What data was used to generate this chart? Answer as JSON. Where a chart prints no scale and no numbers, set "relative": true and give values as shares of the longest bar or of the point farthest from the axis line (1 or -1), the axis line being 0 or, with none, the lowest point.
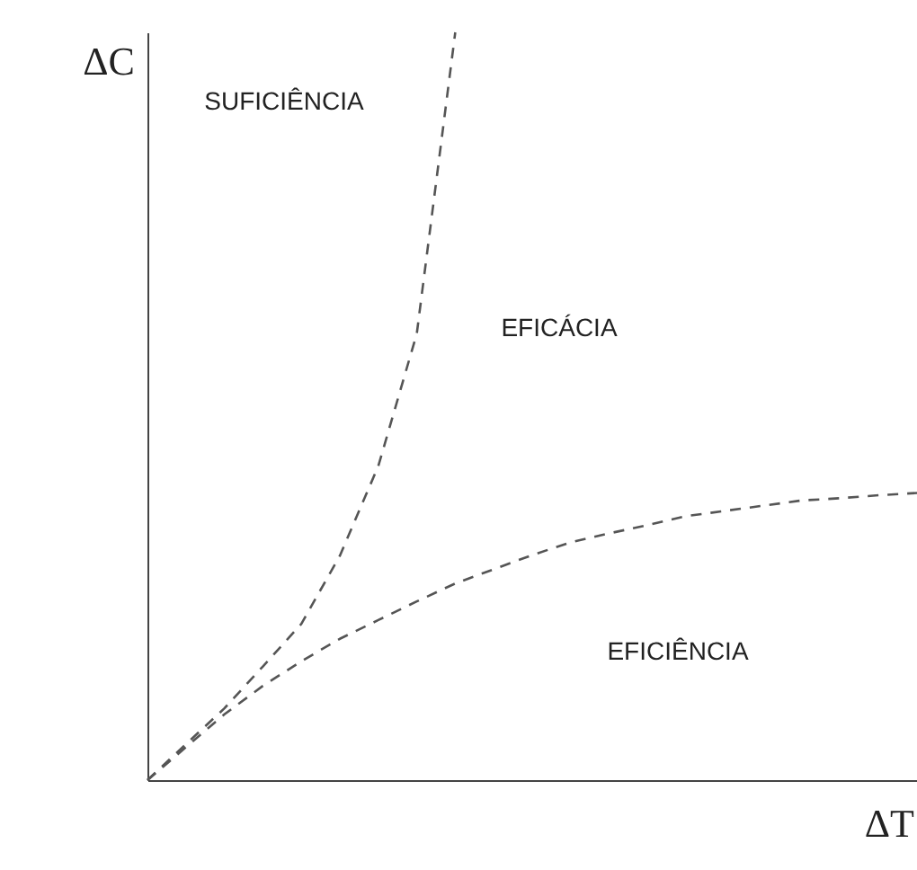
{
  "chart_data": {
    "type": "line",
    "relative": true,
    "xlabel": "ΔT",
    "ylabel": "ΔC",
    "grid": false,
    "line_style": "dashed",
    "marker": "none",
    "annotations": [
      "SUFICIÊNCIA",
      "EFICÁCIA",
      "EFICIÊNCIA"
    ],
    "categories": [
      null,
      null,
      null,
      null,
      null,
      null,
      null,
      null,
      null,
      null,
      null,
      null,
      null,
      null,
      null,
      null,
      null,
      null,
      null,
      null,
      null
    ],
    "series": [
      {
        "color": "#555555",
        "values": [
          0,
          0.048,
          0.096,
          0.152,
          0.209,
          0.3,
          0.42,
          0.597,
          1.0,
          null,
          null,
          null,
          null,
          null,
          null,
          null,
          null,
          null,
          null,
          null,
          null
        ]
      },
      {
        "color": "#555555",
        "values": [
          0,
          0.044,
          0.088,
          0.126,
          0.159,
          0.189,
          0.214,
          0.239,
          0.263,
          0.282,
          0.301,
          0.318,
          0.33,
          0.341,
          0.353,
          0.36,
          0.367,
          0.374,
          0.377,
          0.381,
          0.384
        ]
      }
    ]
  }
}
